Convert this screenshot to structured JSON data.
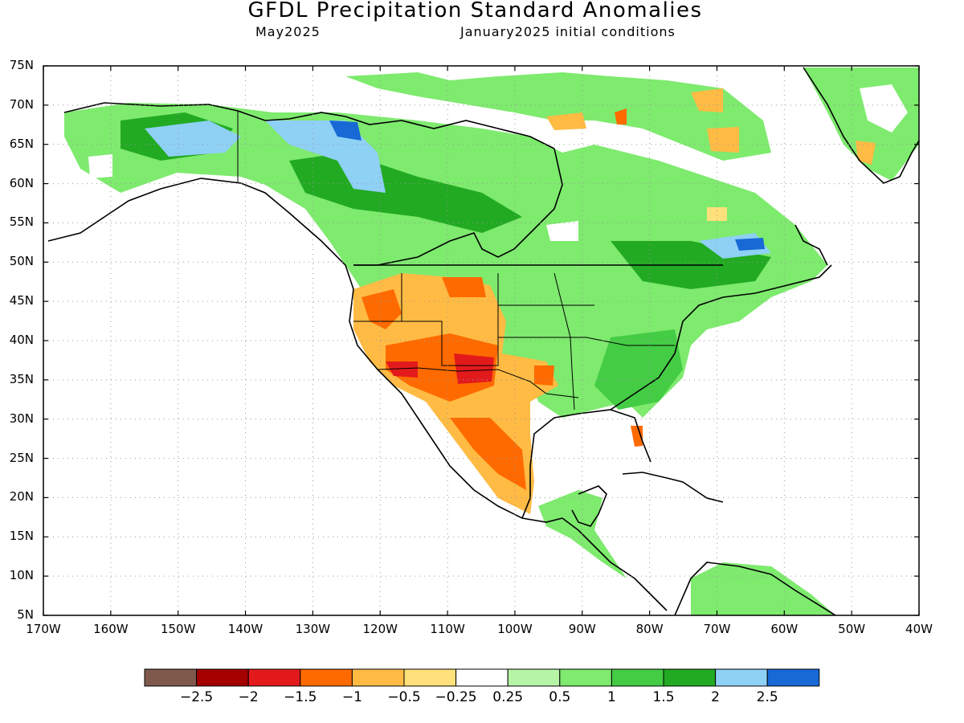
{
  "header": {
    "title": "GFDL Precipitation Standard Anomalies",
    "target_month": "May2025",
    "init_conditions": "January2025 initial conditions"
  },
  "map": {
    "lon_range": [
      -170,
      -40
    ],
    "lat_range": [
      5,
      75
    ],
    "lat_ticks": [
      "75N",
      "70N",
      "65N",
      "60N",
      "55N",
      "50N",
      "45N",
      "40N",
      "35N",
      "30N",
      "25N",
      "20N",
      "15N",
      "10N",
      "5N"
    ],
    "lon_ticks": [
      "170W",
      "160W",
      "150W",
      "140W",
      "130W",
      "120W",
      "110W",
      "100W",
      "90W",
      "80W",
      "70W",
      "60W",
      "50W",
      "40W"
    ],
    "gridlines": "dotted"
  },
  "colorbar": {
    "colors": [
      "#7f5a4c",
      "#a40000",
      "#e31a1c",
      "#ff6a00",
      "#ffbb44",
      "#ffe07a",
      "#ffffff",
      "#b6f5a6",
      "#7eea6e",
      "#44cc44",
      "#22aa22",
      "#8fd0f5",
      "#1769d6"
    ],
    "labels": [
      "−2.5",
      "−2",
      "−1.5",
      "−1",
      "−0.5",
      "−0.25",
      "0.25",
      "0.5",
      "1",
      "1.5",
      "2",
      "2.5"
    ]
  }
}
